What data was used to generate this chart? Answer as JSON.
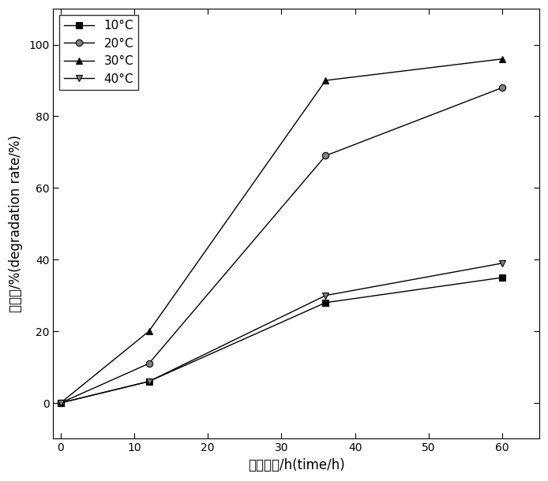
{
  "x": [
    0,
    12,
    36,
    60
  ],
  "series": [
    {
      "label": "10°C",
      "values": [
        0,
        6,
        28,
        35
      ],
      "marker": "s",
      "mfc": "black",
      "mec": "black"
    },
    {
      "label": "20°C",
      "values": [
        0,
        11,
        69,
        88
      ],
      "marker": "o",
      "mfc": "gray",
      "mec": "black"
    },
    {
      "label": "30°C",
      "values": [
        0,
        20,
        90,
        96
      ],
      "marker": "^",
      "mfc": "black",
      "mec": "black"
    },
    {
      "label": "40°C",
      "values": [
        0,
        6,
        30,
        39
      ],
      "marker": "v",
      "mfc": "gray",
      "mec": "black"
    }
  ],
  "xlabel_cn": "降解时间/h",
  "xlabel_en": "(time/h)",
  "ylabel_cn": "降解率/%",
  "ylabel_en": "(degradation rate/%)",
  "xlim": [
    -1,
    65
  ],
  "ylim": [
    -10,
    110
  ],
  "xticks": [
    0,
    10,
    20,
    30,
    40,
    50,
    60
  ],
  "yticks": [
    0,
    20,
    40,
    60,
    80,
    100
  ],
  "legend_loc": "upper left",
  "figsize": [
    6.94,
    6.1
  ],
  "dpi": 100
}
